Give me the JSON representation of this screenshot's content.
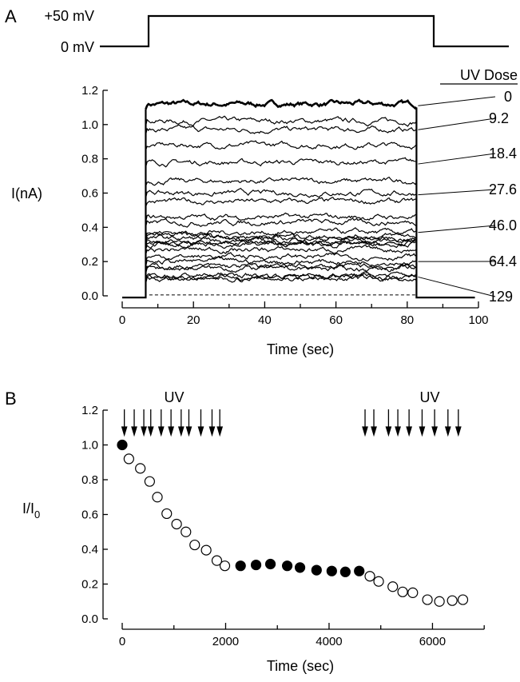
{
  "chart_data": [
    {
      "panel": "A",
      "type": "line",
      "protocol": {
        "high_label": "+50 mV",
        "low_label": "0 mV",
        "step_on_sec": 6.6,
        "step_off_sec": 82.6
      },
      "xlabel": "Time (sec)",
      "ylabel": "I(nA)",
      "xlim": [
        0,
        100
      ],
      "ylim": [
        0,
        1.2
      ],
      "xticks": [
        "0",
        "20",
        "40",
        "60",
        "80",
        "100"
      ],
      "yticks": [
        "0.0",
        "0.2",
        "0.4",
        "0.6",
        "0.8",
        "1.0",
        "1.2"
      ],
      "legend_title": "UV Dose",
      "trace_levels_nA": [
        1.12,
        1.02,
        0.97,
        0.88,
        0.78,
        0.67,
        0.6,
        0.55,
        0.46,
        0.43,
        0.37,
        0.35,
        0.335,
        0.32,
        0.31,
        0.3,
        0.27,
        0.23,
        0.2,
        0.17,
        0.16,
        0.12,
        0.11,
        0.1
      ],
      "baseline_dashed_nA": 0.005,
      "dose_labels": [
        {
          "label": "0",
          "level": 1.11
        },
        {
          "label": "9.2",
          "level": 0.97
        },
        {
          "label": "18.4",
          "level": 0.77
        },
        {
          "label": "27.6",
          "level": 0.59
        },
        {
          "label": "46.0",
          "level": 0.37
        },
        {
          "label": "64.4",
          "level": 0.2
        },
        {
          "label": "129",
          "level": 0.11
        }
      ]
    },
    {
      "panel": "B",
      "type": "scatter",
      "xlabel": "Time (sec)",
      "ylabel": "I/I",
      "ylabel_sub": "0",
      "xlim": [
        0,
        7000
      ],
      "ylim": [
        0,
        1.2
      ],
      "xticks": [
        "0",
        "2000",
        "4000",
        "6000"
      ],
      "yticks": [
        "0.0",
        "0.2",
        "0.4",
        "0.6",
        "0.8",
        "1.0",
        "1.2"
      ],
      "uv_label_1": "UV",
      "uv_label_2": "UV",
      "uv_arrows_sec": [
        41,
        232,
        418,
        552,
        753,
        944,
        1140,
        1289,
        1521,
        1737,
        1887,
        4696,
        4866,
        5150,
        5330,
        5547,
        5799,
        6041,
        6299,
        6500
      ],
      "points": [
        {
          "t": 0,
          "v": 1.0,
          "filled": true
        },
        {
          "t": 129,
          "v": 0.92,
          "filled": false
        },
        {
          "t": 350,
          "v": 0.865,
          "filled": false
        },
        {
          "t": 531,
          "v": 0.79,
          "filled": false
        },
        {
          "t": 680,
          "v": 0.7,
          "filled": false
        },
        {
          "t": 861,
          "v": 0.605,
          "filled": false
        },
        {
          "t": 1052,
          "v": 0.545,
          "filled": false
        },
        {
          "t": 1232,
          "v": 0.5,
          "filled": false
        },
        {
          "t": 1402,
          "v": 0.425,
          "filled": false
        },
        {
          "t": 1624,
          "v": 0.395,
          "filled": false
        },
        {
          "t": 1830,
          "v": 0.335,
          "filled": false
        },
        {
          "t": 1985,
          "v": 0.305,
          "filled": false
        },
        {
          "t": 2289,
          "v": 0.305,
          "filled": true
        },
        {
          "t": 2588,
          "v": 0.31,
          "filled": true
        },
        {
          "t": 2866,
          "v": 0.315,
          "filled": true
        },
        {
          "t": 3191,
          "v": 0.305,
          "filled": true
        },
        {
          "t": 3438,
          "v": 0.295,
          "filled": true
        },
        {
          "t": 3758,
          "v": 0.28,
          "filled": true
        },
        {
          "t": 4052,
          "v": 0.275,
          "filled": true
        },
        {
          "t": 4315,
          "v": 0.27,
          "filled": true
        },
        {
          "t": 4583,
          "v": 0.275,
          "filled": true
        },
        {
          "t": 4789,
          "v": 0.245,
          "filled": false
        },
        {
          "t": 4959,
          "v": 0.215,
          "filled": false
        },
        {
          "t": 5232,
          "v": 0.185,
          "filled": false
        },
        {
          "t": 5423,
          "v": 0.155,
          "filled": false
        },
        {
          "t": 5619,
          "v": 0.15,
          "filled": false
        },
        {
          "t": 5902,
          "v": 0.11,
          "filled": false
        },
        {
          "t": 6134,
          "v": 0.1,
          "filled": false
        },
        {
          "t": 6382,
          "v": 0.105,
          "filled": false
        },
        {
          "t": 6588,
          "v": 0.11,
          "filled": false
        }
      ]
    }
  ],
  "panel_labels": {
    "a": "A",
    "b": "B"
  }
}
